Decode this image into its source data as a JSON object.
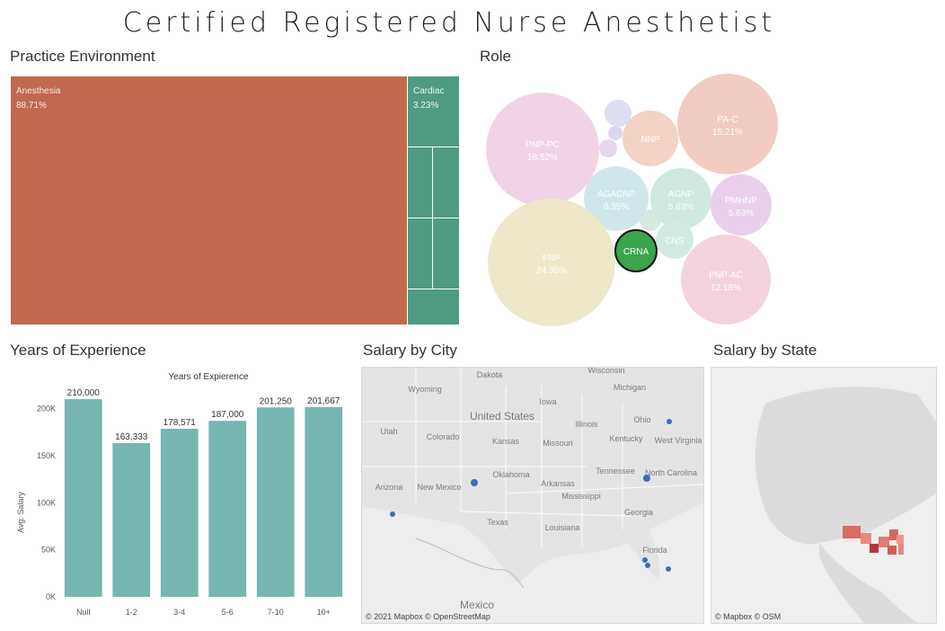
{
  "title": "Certified Registered Nurse Anesthetist",
  "sections": {
    "practice": "Practice Environment",
    "role": "Role",
    "years": "Years of Experience",
    "city": "Salary by City",
    "state": "Salary by State"
  },
  "treemap": {
    "items": [
      {
        "label": "Anesthesia",
        "pct": "88.71%",
        "color": "#c0694e"
      },
      {
        "label": "Cardiac",
        "pct": "3.23%",
        "color": "#4f9a82"
      }
    ]
  },
  "bubbles": [
    {
      "label": "PNP-PC",
      "pct": "18.52%",
      "color": "#f0d4e6"
    },
    {
      "label": "PA-C",
      "pct": "15.21%",
      "color": "#f2cbc2"
    },
    {
      "label": "NNP",
      "pct": "",
      "color": "#f4d2c5"
    },
    {
      "label": "AGACNP",
      "pct": "6.35%",
      "color": "#cfe7ea"
    },
    {
      "label": "AGNP",
      "pct": "5.63%",
      "color": "#cfe8e0"
    },
    {
      "label": "PMHNP",
      "pct": "5.63%",
      "color": "#ead0ea"
    },
    {
      "label": "FNP",
      "pct": "24.35%",
      "color": "#efe7ca"
    },
    {
      "label": "CRNA",
      "pct": "",
      "color": "#3aa54a",
      "highlight": true
    },
    {
      "label": "CNS",
      "pct": "",
      "color": "#d3eae2"
    },
    {
      "label": "PNP-AC",
      "pct": "12.18%",
      "color": "#f3d3dd"
    }
  ],
  "chart_data": {
    "type": "bar",
    "title": "Years of Expierence",
    "ylabel": "Avg. Salary",
    "xlabel": "",
    "categories": [
      "Null",
      "1-2",
      "3-4",
      "5-6",
      "7-10",
      "10+"
    ],
    "values": [
      210000,
      163333,
      178571,
      187000,
      201250,
      201667
    ],
    "value_labels": [
      "210,000",
      "163,333",
      "178,571",
      "187,000",
      "201,250",
      "201,667"
    ],
    "ylim": [
      0,
      212000
    ],
    "yticks": [
      0,
      50000,
      100000,
      150000,
      200000
    ],
    "ytick_labels": [
      "0K",
      "50K",
      "100K",
      "150K",
      "200K"
    ],
    "color": "#76b6b0",
    "grid": false
  },
  "city_map": {
    "labels": [
      "Dakota",
      "Wisconsin",
      "Michigan",
      "Wyoming",
      "Iowa",
      "United States",
      "Illinois",
      "Ohio",
      "Utah",
      "Colorado",
      "Kansas",
      "Missouri",
      "Kentucky",
      "West Virginia",
      "Oklahoma",
      "Tennessee",
      "North Carolina",
      "Arizona",
      "New Mexico",
      "Arkansas",
      "Mississippi",
      "Texas",
      "Louisiana",
      "Georgia",
      "Florida",
      "Mexico"
    ],
    "attribution": "© 2021 Mapbox © OpenStreetMap"
  },
  "state_map": {
    "attribution": "© Mapbox © OSM"
  }
}
